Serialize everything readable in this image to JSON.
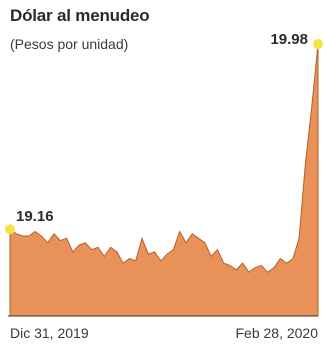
{
  "chart_data": {
    "type": "area",
    "title": "Dólar al menudeo",
    "subtitle": "(Pesos por unidad)",
    "x_tick_labels": [
      "Dic 31, 2019",
      "Feb 28, 2020"
    ],
    "start": {
      "date": "Dic 31, 2019",
      "value": 19.16,
      "label": "19.16"
    },
    "end": {
      "date": "Feb 28, 2020",
      "value": 19.98,
      "label": "19.98"
    },
    "values": [
      19.16,
      19.14,
      19.13,
      19.13,
      19.15,
      19.13,
      19.1,
      19.14,
      19.11,
      19.12,
      19.06,
      19.09,
      19.1,
      19.07,
      19.08,
      19.04,
      19.08,
      19.06,
      19.01,
      19.03,
      19.02,
      19.12,
      19.05,
      19.06,
      19.02,
      19.05,
      19.07,
      19.15,
      19.1,
      19.14,
      19.12,
      19.1,
      19.04,
      19.07,
      19.01,
      19.0,
      18.98,
      19.01,
      18.97,
      18.99,
      19.0,
      18.97,
      18.99,
      19.03,
      19.01,
      19.03,
      19.12,
      19.45,
      19.7,
      19.98
    ],
    "area_color": "#e8925a",
    "marker_color": "#f4e342"
  }
}
